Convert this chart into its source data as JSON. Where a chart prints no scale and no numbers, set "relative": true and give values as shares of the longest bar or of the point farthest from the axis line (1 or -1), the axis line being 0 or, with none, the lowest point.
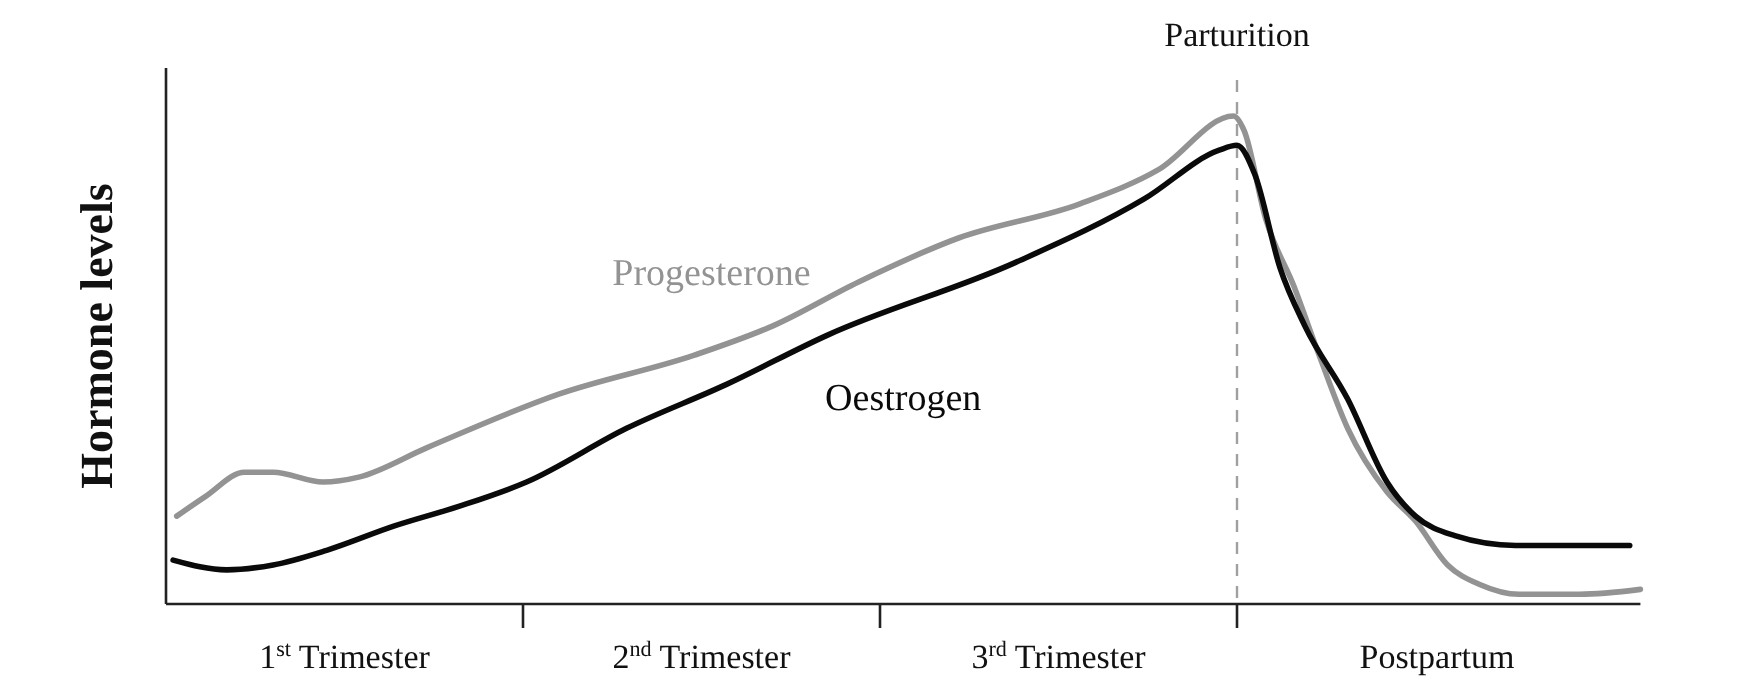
{
  "chart_data": {
    "type": "line",
    "ylabel": "Hormone levels",
    "relative": true,
    "tick_labels": "x",
    "line_style": "solid",
    "marker": "none",
    "xlim": [
      0,
      4.13
    ],
    "xticks": [
      {
        "value": 0.5,
        "label": "1$^{st}$ Trimester"
      },
      {
        "value": 1,
        "label": null
      },
      {
        "value": 1.5,
        "label": "2$^{nd}$ Trimester"
      },
      {
        "value": 2,
        "label": null
      },
      {
        "value": 2.5,
        "label": "3$^{rd}$ Trimester"
      },
      {
        "value": 3,
        "label": null
      },
      {
        "value": 3.56,
        "label": "Postpartum"
      }
    ],
    "ref_lines": [
      {
        "axis": "x",
        "value": 3,
        "label": "Parturition",
        "color": "#a0a0a0",
        "line_style": "dashed"
      }
    ],
    "series": [
      {
        "name": "Progesterone",
        "color": "#939393",
        "x": [
          0.03,
          0.11,
          0.22,
          0.3,
          0.44,
          0.54,
          0.73,
          1.1,
          1.48,
          1.7,
          1.94,
          2.22,
          2.56,
          2.78,
          2.99,
          3.02,
          3.08,
          3.16,
          3.23,
          3.31,
          3.42,
          3.5,
          3.59,
          3.68,
          3.79,
          3.96,
          4.13
        ],
        "values": [
          0.18,
          0.22,
          0.27,
          0.27,
          0.25,
          0.26,
          0.32,
          0.43,
          0.51,
          0.57,
          0.66,
          0.75,
          0.82,
          0.89,
          1,
          0.97,
          0.79,
          0.65,
          0.51,
          0.36,
          0.23,
          0.17,
          0.08,
          0.04,
          0.02,
          0.02,
          0.03
        ]
      },
      {
        "name": "Oestrogen",
        "color": "#0a0a0a",
        "x": [
          0.02,
          0.17,
          0.3,
          0.45,
          0.64,
          0.82,
          1.01,
          1.29,
          1.57,
          1.85,
          2.38,
          2.74,
          2.95,
          3,
          3.05,
          3.12,
          3.19,
          3.31,
          3.42,
          3.5,
          3.61,
          3.78,
          3.94,
          4.1
        ],
        "values": [
          0.09,
          0.07,
          0.08,
          0.11,
          0.16,
          0.2,
          0.25,
          0.36,
          0.45,
          0.55,
          0.7,
          0.83,
          0.93,
          0.94,
          0.88,
          0.69,
          0.57,
          0.42,
          0.25,
          0.18,
          0.14,
          0.12,
          0.12,
          0.12
        ]
      }
    ]
  }
}
